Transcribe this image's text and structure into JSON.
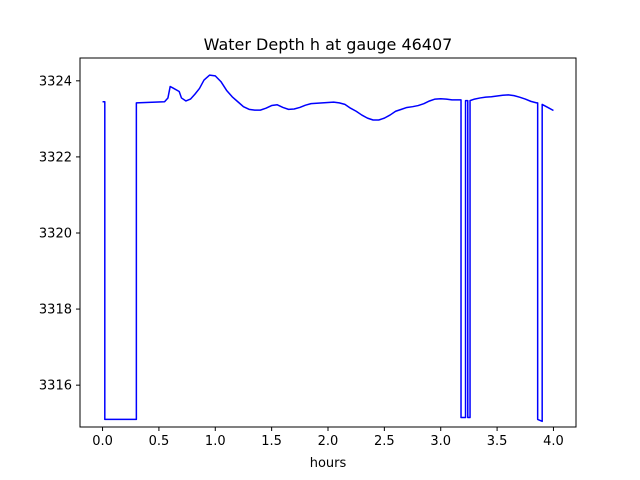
{
  "chart_data": {
    "type": "line",
    "title": "Water Depth h at gauge 46407",
    "xlabel": "hours",
    "ylabel": "",
    "xlim": [
      -0.2,
      4.2
    ],
    "ylim": [
      3314.9,
      3324.6
    ],
    "xticks": [
      0.0,
      0.5,
      1.0,
      1.5,
      2.0,
      2.5,
      3.0,
      3.5,
      4.0
    ],
    "xtick_labels": [
      "0.0",
      "0.5",
      "1.0",
      "1.5",
      "2.0",
      "2.5",
      "3.0",
      "3.5",
      "4.0"
    ],
    "yticks": [
      3316,
      3318,
      3320,
      3322,
      3324
    ],
    "ytick_labels": [
      "3316",
      "3318",
      "3320",
      "3322",
      "3324"
    ],
    "grid": false,
    "series": [
      {
        "color": "#0000ff",
        "x": [
          0.0,
          0.02,
          0.02,
          0.3,
          0.3,
          0.55,
          0.58,
          0.6,
          0.62,
          0.68,
          0.7,
          0.74,
          0.78,
          0.82,
          0.86,
          0.9,
          0.95,
          1.0,
          1.05,
          1.1,
          1.15,
          1.2,
          1.25,
          1.3,
          1.35,
          1.4,
          1.45,
          1.5,
          1.55,
          1.6,
          1.65,
          1.7,
          1.75,
          1.8,
          1.85,
          1.9,
          1.95,
          2.0,
          2.05,
          2.1,
          2.15,
          2.2,
          2.25,
          2.3,
          2.35,
          2.4,
          2.45,
          2.5,
          2.55,
          2.6,
          2.65,
          2.7,
          2.75,
          2.8,
          2.85,
          2.9,
          2.95,
          3.0,
          3.05,
          3.1,
          3.15,
          3.18,
          3.18,
          3.22,
          3.22,
          3.24,
          3.24,
          3.26,
          3.26,
          3.3,
          3.35,
          3.4,
          3.45,
          3.5,
          3.55,
          3.6,
          3.65,
          3.7,
          3.75,
          3.8,
          3.85,
          3.86,
          3.86,
          3.9,
          3.9,
          3.95,
          4.0
        ],
        "y": [
          3323.45,
          3323.45,
          3315.1,
          3315.1,
          3323.42,
          3323.45,
          3323.55,
          3323.85,
          3323.82,
          3323.72,
          3323.55,
          3323.47,
          3323.52,
          3323.65,
          3323.8,
          3324.02,
          3324.15,
          3324.13,
          3323.98,
          3323.75,
          3323.58,
          3323.45,
          3323.32,
          3323.25,
          3323.23,
          3323.23,
          3323.28,
          3323.35,
          3323.37,
          3323.3,
          3323.25,
          3323.26,
          3323.3,
          3323.36,
          3323.4,
          3323.41,
          3323.42,
          3323.43,
          3323.44,
          3323.42,
          3323.38,
          3323.28,
          3323.2,
          3323.1,
          3323.02,
          3322.97,
          3322.97,
          3323.02,
          3323.1,
          3323.2,
          3323.25,
          3323.3,
          3323.32,
          3323.35,
          3323.4,
          3323.47,
          3323.52,
          3323.53,
          3323.52,
          3323.5,
          3323.5,
          3323.5,
          3315.15,
          3315.15,
          3323.48,
          3323.48,
          3315.15,
          3315.15,
          3323.48,
          3323.52,
          3323.55,
          3323.57,
          3323.58,
          3323.6,
          3323.62,
          3323.63,
          3323.61,
          3323.57,
          3323.52,
          3323.46,
          3323.42,
          3323.42,
          3315.1,
          3315.05,
          3323.38,
          3323.3,
          3323.22
        ]
      }
    ]
  }
}
